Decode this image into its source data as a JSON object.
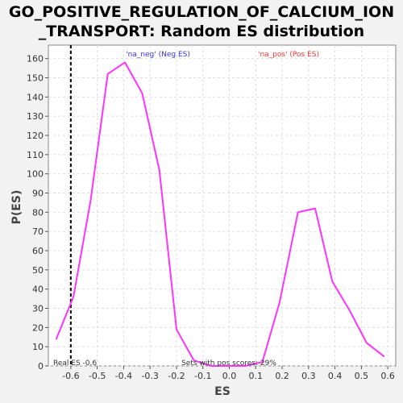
{
  "title_line1": "GO_POSITIVE_REGULATION_OF_CALCIUM_ION",
  "title_line2": "_TRANSPORT: Random ES distribution",
  "colors": {
    "series": "#ff33ff",
    "neg_label": "#3333ff",
    "pos_label": "#ff3333",
    "real_es_line": "#000000"
  },
  "chart_data": {
    "type": "line",
    "title": "GO_POSITIVE_REGULATION_OF_CALCIUM_ION_TRANSPORT: Random ES distribution",
    "xlabel": "ES",
    "ylabel": "P(ES)",
    "xlim": [
      -0.685,
      0.63
    ],
    "ylim": [
      0,
      167
    ],
    "xticks": [
      -0.6,
      -0.5,
      -0.4,
      -0.3,
      -0.2,
      -0.1,
      0.0,
      0.1,
      0.2,
      0.3,
      0.4,
      0.5,
      0.6
    ],
    "xtick_labels": [
      "-0.6",
      "-0.5",
      "-0.4",
      "-0.3",
      "-0.2",
      "-0.1",
      "0.0",
      "0.1",
      "0.2",
      "0.3",
      "0.4",
      "0.5",
      "0.6"
    ],
    "yticks": [
      0,
      10,
      20,
      30,
      40,
      50,
      60,
      70,
      80,
      90,
      100,
      110,
      120,
      130,
      140,
      150,
      160
    ],
    "grid": true,
    "series": [
      {
        "x": [
          -0.655,
          -0.59,
          -0.525,
          -0.46,
          -0.395,
          -0.33,
          -0.265,
          -0.2,
          -0.135,
          -0.07,
          -0.005,
          0.06,
          0.125,
          0.19,
          0.26,
          0.325,
          0.39,
          0.455,
          0.52,
          0.585
        ],
        "values": [
          14,
          36,
          86,
          152,
          158,
          142,
          102,
          19,
          3,
          0,
          0,
          0,
          2,
          33,
          80,
          82,
          44,
          29,
          12,
          5
        ]
      }
    ],
    "real_es": -0.6,
    "annotations": {
      "neg_label": "'na_neg' (Neg ES)",
      "pos_label": "'na_pos' (Pos ES)",
      "real_es": "Real ES -0.6",
      "pos_scores": "Sets with pos scores: 29%"
    }
  }
}
